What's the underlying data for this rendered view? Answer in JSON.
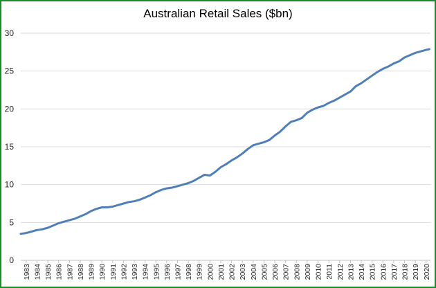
{
  "chart_data": {
    "type": "line",
    "title": "Australian Retail Sales ($bn)",
    "xlabel": "",
    "ylabel": "",
    "ylim": [
      0,
      30
    ],
    "yticks": [
      0,
      5,
      10,
      15,
      20,
      25,
      30
    ],
    "xlim": [
      1982.5,
      2020.4
    ],
    "xticks": [
      "1983",
      "1984",
      "1985",
      "1986",
      "1987",
      "1988",
      "1989",
      "1990",
      "1991",
      "1992",
      "1993",
      "1994",
      "1995",
      "1996",
      "1997",
      "1998",
      "1999",
      "2000",
      "2001",
      "2002",
      "2003",
      "2004",
      "2005",
      "2006",
      "2007",
      "2008",
      "2009",
      "2010",
      "2011",
      "2012",
      "2013",
      "2014",
      "2015",
      "2016",
      "2017",
      "2018",
      "2019",
      "2020"
    ],
    "grid": "horizontal",
    "legend": "none",
    "series": [
      {
        "color": "#4f7fb8",
        "x": [
          1982.5,
          1983,
          1983.5,
          1984,
          1984.5,
          1985,
          1985.5,
          1986,
          1986.5,
          1987,
          1987.5,
          1988,
          1988.5,
          1989,
          1989.5,
          1990,
          1990.5,
          1991,
          1991.5,
          1992,
          1992.5,
          1993,
          1993.5,
          1994,
          1994.5,
          1995,
          1995.5,
          1996,
          1996.5,
          1997,
          1997.5,
          1998,
          1998.5,
          1999,
          1999.5,
          2000,
          2000.5,
          2001,
          2001.5,
          2002,
          2002.5,
          2003,
          2003.5,
          2004,
          2004.5,
          2005,
          2005.5,
          2006,
          2006.5,
          2007,
          2007.5,
          2008,
          2008.5,
          2009,
          2009.5,
          2010,
          2010.5,
          2011,
          2011.5,
          2012,
          2012.5,
          2013,
          2013.5,
          2014,
          2014.5,
          2015,
          2015.5,
          2016,
          2016.5,
          2017,
          2017.5,
          2018,
          2018.5,
          2019,
          2019.5,
          2020,
          2020.3
        ],
        "y": [
          3.5,
          3.6,
          3.8,
          4.0,
          4.1,
          4.3,
          4.6,
          4.9,
          5.1,
          5.3,
          5.5,
          5.8,
          6.1,
          6.5,
          6.8,
          7.0,
          7.0,
          7.1,
          7.3,
          7.5,
          7.7,
          7.8,
          8.0,
          8.3,
          8.6,
          9.0,
          9.3,
          9.5,
          9.6,
          9.8,
          10.0,
          10.2,
          10.5,
          10.9,
          11.3,
          11.2,
          11.7,
          12.3,
          12.7,
          13.2,
          13.6,
          14.1,
          14.7,
          15.2,
          15.4,
          15.6,
          15.9,
          16.5,
          17.0,
          17.7,
          18.3,
          18.5,
          18.8,
          19.5,
          19.9,
          20.2,
          20.4,
          20.8,
          21.1,
          21.5,
          21.9,
          22.3,
          23.0,
          23.4,
          23.9,
          24.4,
          24.9,
          25.3,
          25.6,
          26.0,
          26.3,
          26.8,
          27.1,
          27.4,
          27.6,
          27.8,
          27.9
        ]
      }
    ]
  }
}
